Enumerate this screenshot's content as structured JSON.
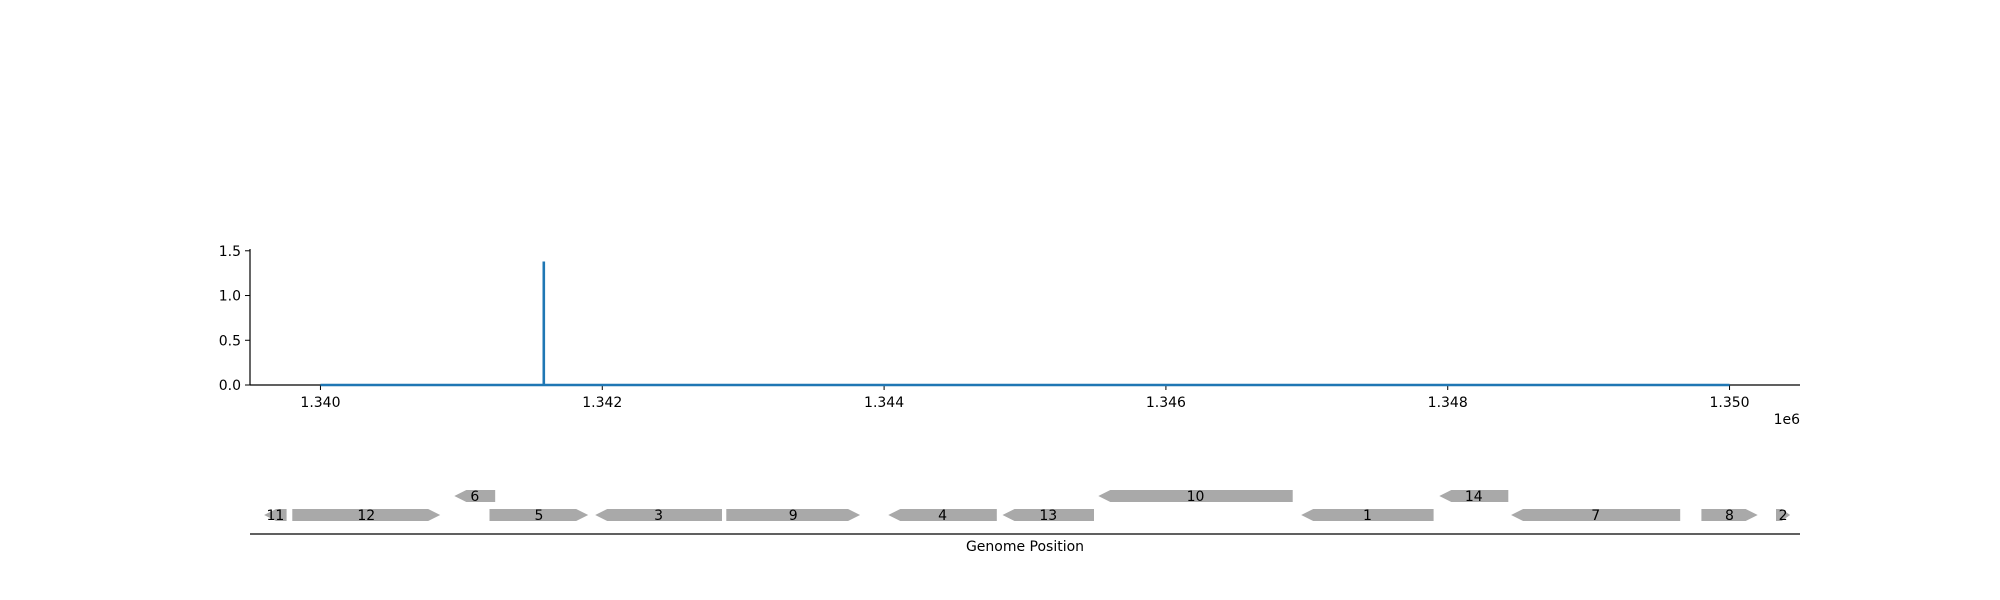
{
  "chart_data": [
    {
      "type": "line",
      "panel": "coverage",
      "x": [
        1340000,
        1341585,
        1341585,
        1341585,
        1350000
      ],
      "y": [
        0,
        0,
        1.38,
        0,
        0
      ],
      "series_color": "#1f77b4",
      "xlim": [
        1339500,
        1350500
      ],
      "ylim": [
        0,
        1.52
      ],
      "xticks": [
        1340000,
        1342000,
        1344000,
        1346000,
        1348000,
        1350000
      ],
      "xtick_labels": [
        "1.340",
        "1.342",
        "1.344",
        "1.346",
        "1.348",
        "1.350"
      ],
      "yticks": [
        0,
        0.5,
        1,
        1.5
      ],
      "ytick_labels": [
        "0.0",
        "0.5",
        "1.0",
        "1.5"
      ],
      "x_offset_label": "1e6",
      "grid": false
    },
    {
      "type": "gene_track",
      "panel": "genes",
      "xlabel": "Genome Position",
      "gene_color": "#a9a9a9",
      "genes": [
        {
          "label": "11",
          "start": 1339600,
          "end": 1339760,
          "strand": "-",
          "row": 0
        },
        {
          "label": "12",
          "start": 1339800,
          "end": 1340850,
          "strand": "+",
          "row": 0
        },
        {
          "label": "6",
          "start": 1340950,
          "end": 1341240,
          "strand": "-",
          "row": 1
        },
        {
          "label": "5",
          "start": 1341200,
          "end": 1341900,
          "strand": "+",
          "row": 0
        },
        {
          "label": "3",
          "start": 1341950,
          "end": 1342850,
          "strand": "-",
          "row": 0
        },
        {
          "label": "9",
          "start": 1342880,
          "end": 1343830,
          "strand": "+",
          "row": 0
        },
        {
          "label": "4",
          "start": 1344030,
          "end": 1344800,
          "strand": "-",
          "row": 0
        },
        {
          "label": "13",
          "start": 1344840,
          "end": 1345490,
          "strand": "-",
          "row": 0
        },
        {
          "label": "10",
          "start": 1345520,
          "end": 1346900,
          "strand": "-",
          "row": 1
        },
        {
          "label": "1",
          "start": 1346960,
          "end": 1347900,
          "strand": "-",
          "row": 0
        },
        {
          "label": "14",
          "start": 1347940,
          "end": 1348430,
          "strand": "-",
          "row": 1
        },
        {
          "label": "7",
          "start": 1348450,
          "end": 1349650,
          "strand": "-",
          "row": 0
        },
        {
          "label": "8",
          "start": 1349800,
          "end": 1350200,
          "strand": "+",
          "row": 0
        },
        {
          "label": "2",
          "start": 1350330,
          "end": 1350430,
          "strand": "+",
          "row": 0
        }
      ]
    }
  ]
}
